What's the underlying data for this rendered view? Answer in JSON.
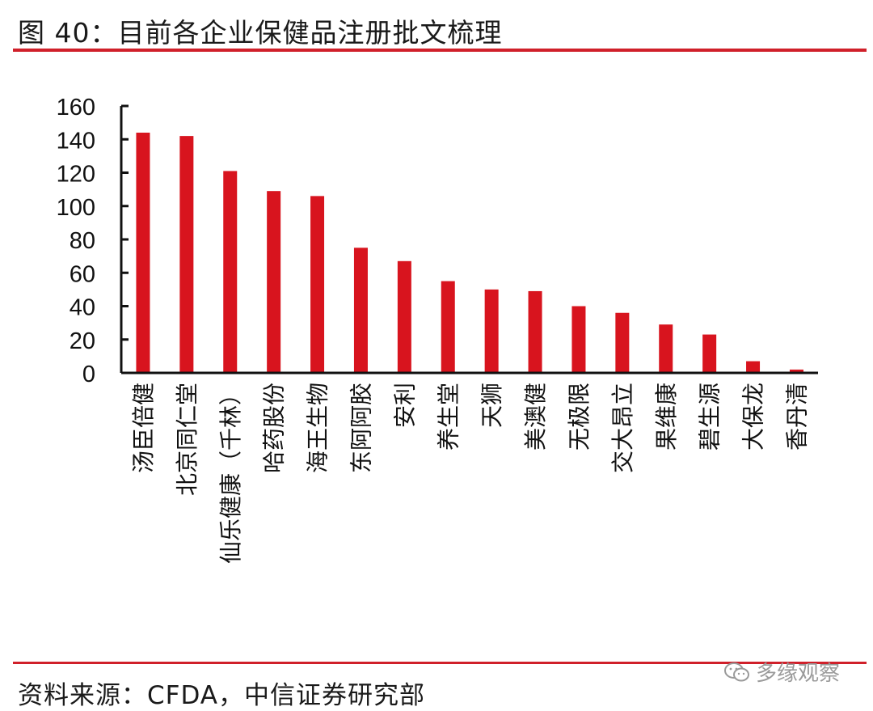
{
  "header": {
    "title": "图 40：目前各企业保健品注册批文梳理"
  },
  "footer": {
    "source": "资料来源：CFDA，中信证券研究部",
    "watermark": "多缘观察"
  },
  "colors": {
    "accent": "#d0202a",
    "bar": "#d8141e"
  },
  "chart_data": {
    "type": "bar",
    "title": "目前各企业保健品注册批文梳理",
    "xlabel": "",
    "ylabel": "",
    "ylim": [
      0,
      160
    ],
    "yticks": [
      0,
      20,
      40,
      60,
      80,
      100,
      120,
      140,
      160
    ],
    "categories": [
      "汤臣倍健",
      "北京同仁堂",
      "仙乐健康（千林）",
      "哈药股份",
      "海王生物",
      "东阿阿胶",
      "安利",
      "养生堂",
      "天狮",
      "美澳健",
      "无极限",
      "交大昂立",
      "果维康",
      "碧生源",
      "大保龙",
      "香丹清"
    ],
    "values": [
      144,
      142,
      121,
      109,
      106,
      75,
      67,
      55,
      50,
      49,
      40,
      36,
      29,
      23,
      7,
      2
    ],
    "grid": false,
    "legend": "none"
  }
}
